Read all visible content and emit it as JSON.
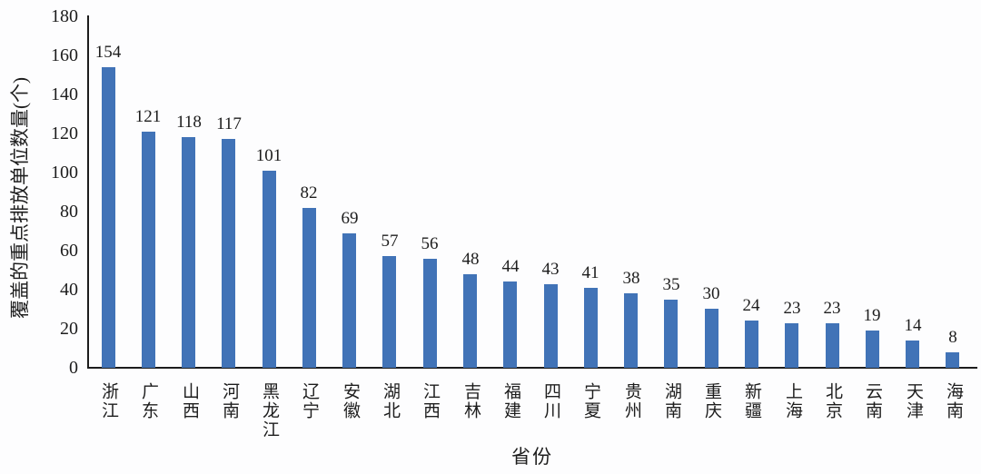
{
  "chart_data": {
    "type": "bar",
    "title": "",
    "xlabel": "省份",
    "ylabel": "覆盖的重点排放单位数量(个)",
    "categories": [
      "浙江",
      "广东",
      "山西",
      "河南",
      "黑龙江",
      "辽宁",
      "安徽",
      "湖北",
      "江西",
      "吉林",
      "福建",
      "四川",
      "宁夏",
      "贵州",
      "湖南",
      "重庆",
      "新疆",
      "上海",
      "北京",
      "云南",
      "天津",
      "海南"
    ],
    "values": [
      154,
      121,
      118,
      117,
      101,
      82,
      69,
      57,
      56,
      48,
      44,
      43,
      41,
      38,
      35,
      30,
      24,
      23,
      23,
      19,
      14,
      8
    ],
    "ylim": [
      0,
      180
    ],
    "yticks": [
      0,
      20,
      40,
      60,
      80,
      100,
      120,
      140,
      160,
      180
    ],
    "data_labels": true,
    "grid": false,
    "legend_position": "none",
    "bar_color": "#4173B7",
    "axis_color": "#1d1d1d",
    "text_color": "#1d1d1d"
  }
}
